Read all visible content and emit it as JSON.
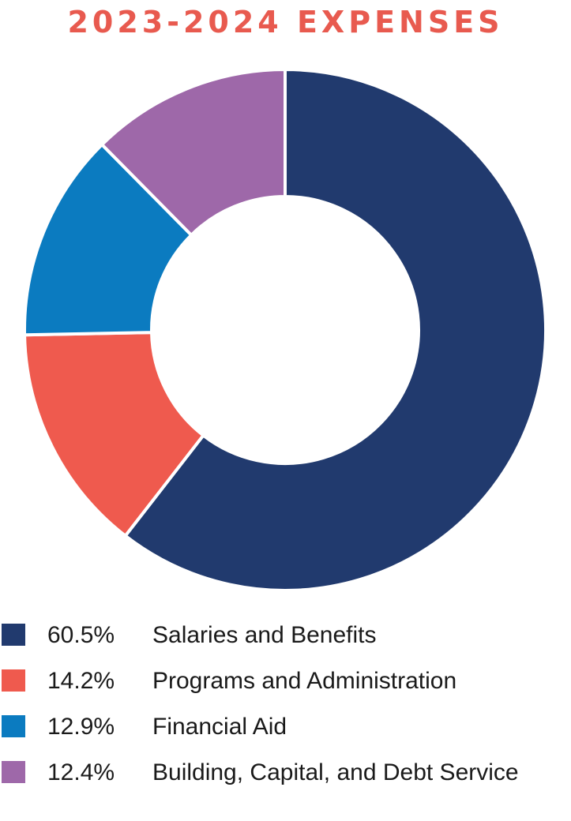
{
  "title": "2023-2024 EXPENSES",
  "colors": {
    "title": "#e85a4f"
  },
  "chart_data": {
    "type": "pie",
    "style": "donut",
    "title": "2023-2024 EXPENSES",
    "legend_position": "bottom",
    "series": [
      {
        "label": "Salaries and Benefits",
        "percent_label": "60.5%",
        "value": 60.5,
        "color": "#213a6e"
      },
      {
        "label": "Programs and Administration",
        "percent_label": "14.2%",
        "value": 14.2,
        "color": "#ef5a4e"
      },
      {
        "label": "Financial Aid",
        "percent_label": "12.9%",
        "value": 12.9,
        "color": "#0b7bc0"
      },
      {
        "label": "Building, Capital, and Debt Service",
        "percent_label": "12.4%",
        "value": 12.4,
        "color": "#9e68a9"
      }
    ]
  }
}
